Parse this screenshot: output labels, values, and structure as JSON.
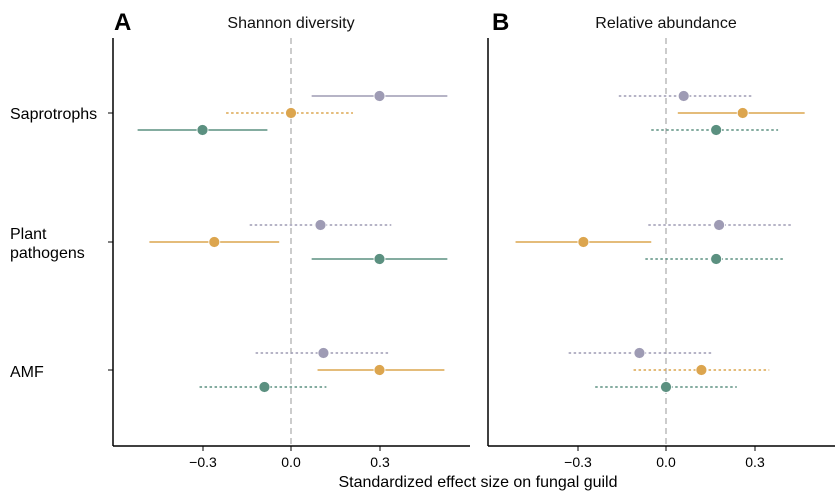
{
  "figure": {
    "xlabel": "Standardized effect size on fungal guild"
  },
  "chart_data": [
    {
      "type": "scatter",
      "panel_letter": "A",
      "title": "Shannon diversity",
      "xlabel": "Standardized effect size on fungal guild",
      "xlim": [
        -0.6,
        0.6
      ],
      "xticks": [
        -0.3,
        0.0,
        0.3
      ],
      "xtick_labels": [
        "−0.3",
        "0.0",
        "0.3"
      ],
      "reference_line_x": 0,
      "categories": [
        "Saprotrophs",
        "Plant pathogens",
        "AMF"
      ],
      "category_lines": [
        [
          "Saprotrophs"
        ],
        [
          "Plant",
          "pathogens"
        ],
        [
          "AMF"
        ]
      ],
      "series": [
        {
          "color": "#9e9bb4",
          "estimate": [
            0.3,
            0.1,
            0.11
          ],
          "lower": [
            0.07,
            -0.14,
            -0.12
          ],
          "upper": [
            0.53,
            0.34,
            0.33
          ],
          "significant": [
            true,
            false,
            false
          ]
        },
        {
          "color": "#dca54e",
          "estimate": [
            0.0,
            -0.26,
            0.3
          ],
          "lower": [
            -0.22,
            -0.48,
            0.09
          ],
          "upper": [
            0.21,
            -0.04,
            0.52
          ],
          "significant": [
            false,
            true,
            true
          ]
        },
        {
          "color": "#5b9080",
          "estimate": [
            -0.3,
            0.3,
            -0.09
          ],
          "lower": [
            -0.52,
            0.07,
            -0.31
          ],
          "upper": [
            -0.08,
            0.53,
            0.12
          ],
          "significant": [
            true,
            true,
            false
          ]
        }
      ]
    },
    {
      "type": "scatter",
      "panel_letter": "B",
      "title": "Relative abundance",
      "xlabel": "Standardized effect size on fungal guild",
      "xlim": [
        -0.6,
        0.6
      ],
      "xticks": [
        -0.3,
        0.0,
        0.3
      ],
      "xtick_labels": [
        "−0.3",
        "0.0",
        "0.3"
      ],
      "reference_line_x": 0,
      "categories": [
        "Saprotrophs",
        "Plant pathogens",
        "AMF"
      ],
      "series": [
        {
          "color": "#9e9bb4",
          "estimate": [
            0.06,
            0.18,
            -0.09
          ],
          "lower": [
            -0.16,
            -0.06,
            -0.33
          ],
          "upper": [
            0.29,
            0.43,
            0.16
          ],
          "significant": [
            false,
            false,
            false
          ]
        },
        {
          "color": "#dca54e",
          "estimate": [
            0.26,
            -0.28,
            0.12
          ],
          "lower": [
            0.04,
            -0.51,
            -0.11
          ],
          "upper": [
            0.47,
            -0.05,
            0.35
          ],
          "significant": [
            true,
            true,
            false
          ]
        },
        {
          "color": "#5b9080",
          "estimate": [
            0.17,
            0.17,
            0.0
          ],
          "lower": [
            -0.05,
            -0.07,
            -0.24
          ],
          "upper": [
            0.38,
            0.4,
            0.24
          ],
          "significant": [
            false,
            false,
            false
          ]
        }
      ]
    }
  ]
}
